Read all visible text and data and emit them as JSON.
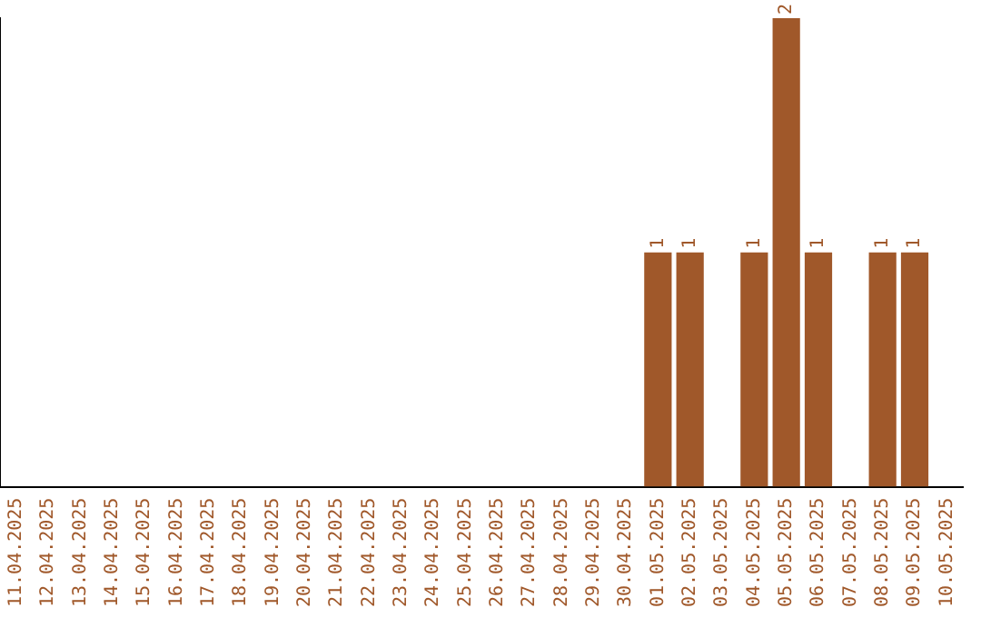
{
  "chart_data": {
    "type": "bar",
    "categories": [
      "11.04.2025",
      "12.04.2025",
      "13.04.2025",
      "14.04.2025",
      "15.04.2025",
      "16.04.2025",
      "17.04.2025",
      "18.04.2025",
      "19.04.2025",
      "20.04.2025",
      "21.04.2025",
      "22.04.2025",
      "23.04.2025",
      "24.04.2025",
      "25.04.2025",
      "26.04.2025",
      "27.04.2025",
      "28.04.2025",
      "29.04.2025",
      "30.04.2025",
      "01.05.2025",
      "02.05.2025",
      "03.05.2025",
      "04.05.2025",
      "05.05.2025",
      "06.05.2025",
      "07.05.2025",
      "08.05.2025",
      "09.05.2025",
      "10.05.2025"
    ],
    "values": [
      null,
      null,
      null,
      null,
      null,
      null,
      null,
      null,
      null,
      null,
      null,
      null,
      null,
      null,
      null,
      null,
      null,
      null,
      null,
      null,
      1,
      1,
      null,
      1,
      2,
      1,
      null,
      1,
      1,
      null
    ],
    "value_labels": [
      null,
      null,
      null,
      null,
      null,
      null,
      null,
      null,
      null,
      null,
      null,
      null,
      null,
      null,
      null,
      null,
      null,
      null,
      null,
      null,
      "1",
      "1",
      null,
      "1",
      "2",
      "1",
      null,
      "1",
      "1",
      null
    ],
    "color": "#a0582a",
    "grid": false,
    "tick_labels": "x"
  }
}
